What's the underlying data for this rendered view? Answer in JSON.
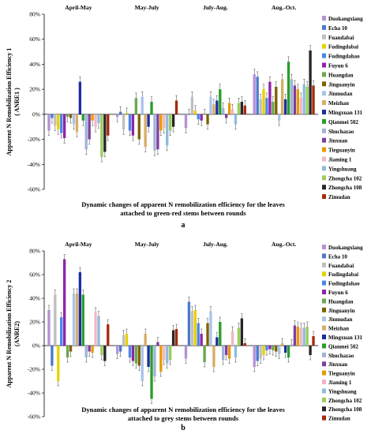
{
  "chart_data": [
    {
      "type": "bar",
      "panel_label": "a",
      "title": "Dynamic changes of apparent N remobilization efficiency for the leaves attached to green-red stems between rounds",
      "title_lines": [
        "Dynamic changes of apparent N remobilization efficiency for the leaves",
        "attached to green-red stems between rounds"
      ],
      "ylabel_lines": [
        "Apparent N Remobilization Efficiency 1",
        "( ANRE1 )"
      ],
      "ylim": [
        -60,
        80
      ],
      "yticks": [
        -60,
        -40,
        -20,
        0,
        20,
        40,
        60,
        80
      ],
      "ytick_labels": [
        "-60%",
        "-40%",
        "-20%",
        "0%",
        "20%",
        "40%",
        "60%",
        "80%"
      ],
      "categories": [
        "April-May",
        "May-July",
        "July-Aug.",
        "Aug.-Oct."
      ],
      "legend_position": "right",
      "series": [
        {
          "name": "Duokangxiang",
          "values": [
            -13,
            -2,
            -11,
            32
          ]
        },
        {
          "name": "Echa 10",
          "values": [
            -3,
            2,
            0,
            30
          ]
        },
        {
          "name": "Fuandabai",
          "values": [
            -9,
            -12,
            14,
            12
          ]
        },
        {
          "name": "Fudingdabai",
          "values": [
            -12,
            1,
            3,
            20
          ]
        },
        {
          "name": "Fudingdahao",
          "values": [
            -15,
            -13,
            -4,
            13
          ]
        },
        {
          "name": "Fuyun 6",
          "values": [
            -19,
            -17,
            -5,
            26
          ]
        },
        {
          "name": "Huangdan",
          "values": [
            -2,
            13,
            0,
            10
          ]
        },
        {
          "name": "Jinguanyin",
          "values": [
            -3,
            -20,
            -8,
            22
          ]
        },
        {
          "name": "Jinmudan",
          "values": [
            -8,
            14,
            14,
            -5
          ]
        },
        {
          "name": "Meizhan",
          "values": [
            -14,
            -26,
            8,
            28
          ]
        },
        {
          "name": "Mingxuan 131",
          "values": [
            26,
            -10,
            11,
            12
          ]
        },
        {
          "name": "Qianmei 502",
          "values": [
            -5,
            10,
            20,
            42
          ]
        },
        {
          "name": "Shuchazao",
          "values": [
            -28,
            -29,
            5,
            28
          ]
        },
        {
          "name": "Jinxuan",
          "values": [
            -20,
            -28,
            -3,
            23
          ]
        },
        {
          "name": "Tieguanyin",
          "values": [
            -5,
            -13,
            9,
            20
          ]
        },
        {
          "name": "Jiaming 1",
          "values": [
            -10,
            -11,
            4,
            13
          ]
        },
        {
          "name": "Yingshuang",
          "values": [
            -7,
            -25,
            -8,
            24
          ]
        },
        {
          "name": "Zhongcha 102",
          "values": [
            -34,
            -13,
            9,
            22
          ]
        },
        {
          "name": "Zhongcha 108",
          "values": [
            -30,
            -10,
            10,
            51
          ]
        },
        {
          "name": "Zimudan",
          "values": [
            -17,
            11,
            7,
            23
          ]
        }
      ]
    },
    {
      "type": "bar",
      "panel_label": "b",
      "title": "Dynamic changes of apparent N remobilization efficiency for the leaves attached to grey stems between rounds",
      "title_lines": [
        "Dynamic changes of apparent N remobilization efficiency for the leaves",
        "attached to grey stems between rounds"
      ],
      "ylabel_lines": [
        "Apparent N Remobilization Efficiency 2",
        "(ANRE2)"
      ],
      "ylim": [
        -60,
        80
      ],
      "yticks": [
        -60,
        -40,
        -20,
        0,
        20,
        40,
        60,
        80
      ],
      "ytick_labels": [
        "-60%",
        "-40%",
        "-20%",
        "0%",
        "20%",
        "40%",
        "60%",
        "80%"
      ],
      "categories": [
        "April-May",
        "May-July",
        "July-Aug.",
        "Aug.-Oct."
      ],
      "legend_position": "right",
      "series": [
        {
          "name": "Duokangxiang",
          "values": [
            30,
            -7,
            -11,
            -18
          ]
        },
        {
          "name": "Echa 10",
          "values": [
            -17,
            -5,
            37,
            -13
          ]
        },
        {
          "name": "Fuandabai",
          "values": [
            43,
            9,
            29,
            -11
          ]
        },
        {
          "name": "Fudingdabai",
          "values": [
            -30,
            10,
            30,
            -8
          ]
        },
        {
          "name": "Fudingdahao",
          "values": [
            24,
            -10,
            19,
            -4
          ]
        },
        {
          "name": "Fuyun 6",
          "values": [
            73,
            -13,
            10,
            -3
          ]
        },
        {
          "name": "Huangdan",
          "values": [
            -10,
            -15,
            -14,
            -4
          ]
        },
        {
          "name": "Jinguanyin",
          "values": [
            -5,
            -17,
            19,
            -5
          ]
        },
        {
          "name": "Jinmudan",
          "values": [
            44,
            -30,
            29,
            -7
          ]
        },
        {
          "name": "Meizhan",
          "values": [
            44,
            10,
            -18,
            2
          ]
        },
        {
          "name": "Mingxuan 131",
          "values": [
            62,
            -18,
            7,
            -6
          ]
        },
        {
          "name": "Qianmei 502",
          "values": [
            43,
            -45,
            20,
            -10
          ]
        },
        {
          "name": "Shuchazao",
          "values": [
            -10,
            -26,
            -12,
            1
          ]
        },
        {
          "name": "Jinxuan",
          "values": [
            -5,
            3,
            -8,
            17
          ]
        },
        {
          "name": "Tieguanyin",
          "values": [
            -6,
            -22,
            -11,
            16
          ]
        },
        {
          "name": "Jiaming 1",
          "values": [
            28,
            -12,
            12,
            15
          ]
        },
        {
          "name": "Yingshuang",
          "values": [
            25,
            -15,
            -10,
            15
          ]
        },
        {
          "name": "Zhongcha 102",
          "values": [
            -8,
            -12,
            15,
            16
          ]
        },
        {
          "name": "Zhongcha 108",
          "values": [
            -13,
            13,
            23,
            -8
          ]
        },
        {
          "name": "Zimudan",
          "values": [
            18,
            14,
            2,
            8
          ]
        }
      ]
    }
  ],
  "colors": [
    "#b491d6",
    "#4a79cc",
    "#bfbfbf",
    "#e8d000",
    "#4a86e8",
    "#8e24aa",
    "#6aa84f",
    "#7f6000",
    "#a9c4eb",
    "#d9ad65",
    "#1c2e9e",
    "#2a9d2a",
    "#9fb3d8",
    "#7d3fa0",
    "#e69a00",
    "#f4b6c2",
    "#8fbbdd",
    "#9bcc5a",
    "#262626",
    "#a52a0c"
  ]
}
